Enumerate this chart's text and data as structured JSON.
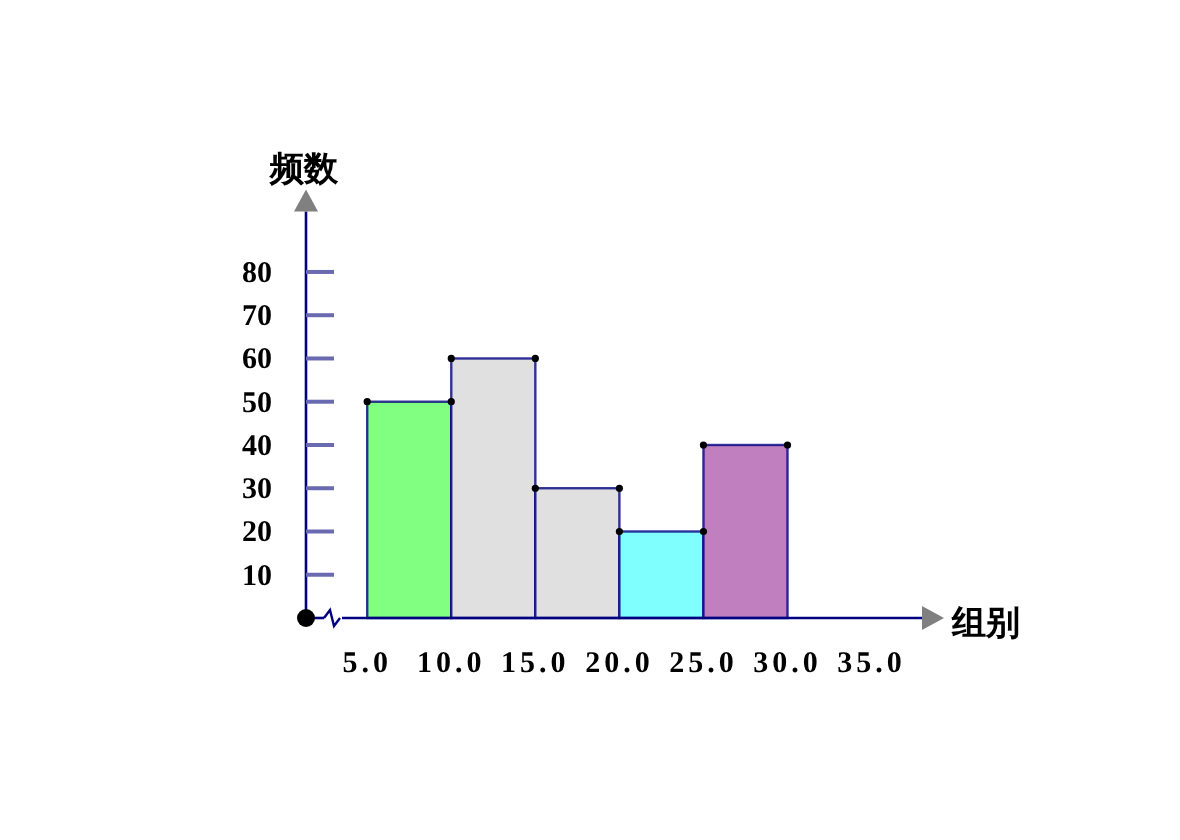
{
  "chart_data": {
    "type": "histogram",
    "xlabel": "组别",
    "ylabel": "频数",
    "bins": [
      5,
      10,
      15,
      20,
      25,
      30
    ],
    "values": [
      50,
      60,
      30,
      20,
      40
    ],
    "colors": [
      "#80ff80",
      "#e0e0e0",
      "#e0e0e0",
      "#80ffff",
      "#c080c0"
    ],
    "series": [
      {
        "type": "scatter",
        "color": "#000000",
        "marker": "circle",
        "x": [
          5,
          10,
          10,
          15,
          15,
          20,
          20,
          25,
          25,
          30
        ],
        "values": [
          50,
          50,
          60,
          60,
          30,
          30,
          20,
          20,
          40,
          40
        ]
      }
    ],
    "xlim": [
      3.5,
      38
    ],
    "ylim": [
      0,
      94
    ],
    "xticks": [
      {
        "value": 5,
        "label": "5.0"
      },
      {
        "value": 10,
        "label": "10.0"
      },
      {
        "value": 15,
        "label": "15.0"
      },
      {
        "value": 20,
        "label": "20.0"
      },
      {
        "value": 25,
        "label": "25.0"
      },
      {
        "value": 30,
        "label": "30.0"
      },
      {
        "value": 35,
        "label": "35.0"
      }
    ],
    "yticks": [
      10,
      20,
      30,
      40,
      50,
      60,
      70,
      80
    ]
  }
}
